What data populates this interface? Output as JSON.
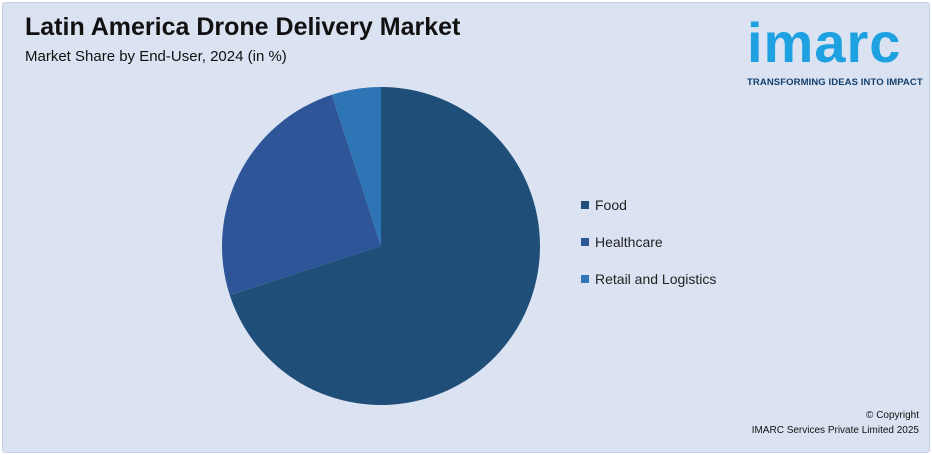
{
  "header": {
    "title": "Latin America Drone Delivery Market",
    "subtitle": "Market Share by End-User, 2024 (in %)"
  },
  "logo": {
    "word": "imarc",
    "tagline": "TRANSFORMING IDEAS INTO IMPACT"
  },
  "chart_data": {
    "type": "pie",
    "title": "Latin America Drone Delivery Market",
    "subtitle": "Market Share by End-User, 2024 (in %)",
    "categories": [
      "Food",
      "Healthcare",
      "Retail and Logistics"
    ],
    "values": [
      70,
      25,
      5
    ],
    "colors": [
      "#1f4e79",
      "#2e5597",
      "#2e75b6"
    ],
    "legend_position": "right"
  },
  "footer": {
    "copyright_line1": "© Copyright",
    "copyright_line2": "IMARC Services Private Limited 2025"
  },
  "colors": {
    "background": "#dbe3f3",
    "brand_blue": "#1ea1e0",
    "brand_navy": "#123f6c"
  }
}
